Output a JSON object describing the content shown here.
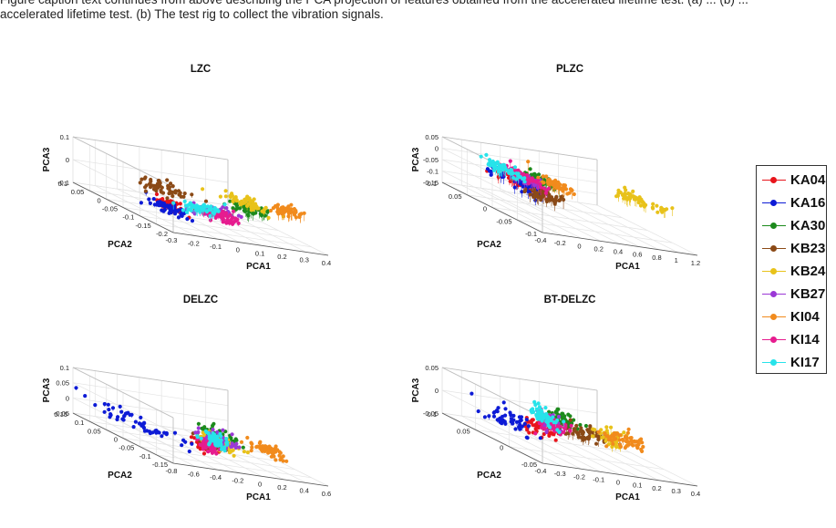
{
  "caption": {
    "line1": "Figure caption text continues from above describing the PCA projection of features obtained from the accelerated lifetime test. (a) ... (b) ...",
    "line2": "accelerated lifetime test. (b) The test rig to collect the vibration signals."
  },
  "legend": [
    {
      "label": "KA04",
      "color": "#e8141b"
    },
    {
      "label": "KA16",
      "color": "#0d1bd6"
    },
    {
      "label": "KA30",
      "color": "#1c8a1c"
    },
    {
      "label": "KB23",
      "color": "#8b4a17"
    },
    {
      "label": "KB24",
      "color": "#e8c21a"
    },
    {
      "label": "KB27",
      "color": "#9b38d6"
    },
    {
      "label": "KI04",
      "color": "#f18b1d"
    },
    {
      "label": "KI14",
      "color": "#e61c8f"
    },
    {
      "label": "KI17",
      "color": "#27e3ea"
    }
  ],
  "chart_data": [
    {
      "type": "scatter",
      "title": "LZC",
      "xlabel": "PCA1",
      "ylabel": "PCA2",
      "zlabel": "PCA3",
      "xticks": [
        "-0.3",
        "-0.2",
        "-0.1",
        "0",
        "0.1",
        "0.2",
        "0.3",
        "0.4"
      ],
      "yticks": [
        "0.1",
        "0.05",
        "0",
        "-0.05",
        "-0.1",
        "-0.15",
        "-0.2"
      ],
      "zticks": [
        "0.1",
        "0",
        "-0.1"
      ],
      "xlim": [
        -0.3,
        0.4
      ],
      "ylim": [
        -0.2,
        0.1
      ],
      "zlim": [
        -0.1,
        0.1
      ],
      "grid": true,
      "series": [
        {
          "name": "KA04",
          "x": -0.25,
          "y": 0.06,
          "z": 0.0,
          "sx": 0.025,
          "sy": 0.015
        },
        {
          "name": "KA16",
          "x": -0.25,
          "y": 0.05,
          "z": -0.02,
          "sx": 0.04,
          "sy": 0.025
        },
        {
          "name": "KA30",
          "x": 0.05,
          "y": 0.1,
          "z": 0.05,
          "sx": 0.04,
          "sy": 0.01
        },
        {
          "name": "KB23",
          "x": 0.0,
          "y": -0.12,
          "z": -0.03,
          "sx": 0.05,
          "sy": 0.03
        },
        {
          "name": "KB24",
          "x": 0.25,
          "y": -0.05,
          "z": 0.0,
          "sx": 0.035,
          "sy": 0.03
        },
        {
          "name": "KB27",
          "x": -0.12,
          "y": 0.1,
          "z": 0.02,
          "sx": 0.05,
          "sy": 0.01
        },
        {
          "name": "KI04",
          "x": 0.27,
          "y": 0.07,
          "z": 0.05,
          "sx": 0.035,
          "sy": 0.015
        },
        {
          "name": "KI14",
          "x": -0.05,
          "y": 0.08,
          "z": -0.01,
          "sx": 0.05,
          "sy": 0.015
        },
        {
          "name": "KI17",
          "x": -0.2,
          "y": 0.11,
          "z": 0.03,
          "sx": 0.05,
          "sy": 0.01
        }
      ]
    },
    {
      "type": "scatter",
      "title": "PLZC",
      "xlabel": "PCA1",
      "ylabel": "PCA2",
      "zlabel": "PCA3",
      "xticks": [
        "-0.4",
        "-0.2",
        "0",
        "0.2",
        "0.4",
        "0.6",
        "0.8",
        "1",
        "1.2"
      ],
      "yticks": [
        "0.1",
        "0.05",
        "0",
        "-0.05",
        "-0.1"
      ],
      "zticks": [
        "0.05",
        "0",
        "-0.05",
        "-0.1",
        "-0.15"
      ],
      "xlim": [
        -0.4,
        1.2
      ],
      "ylim": [
        -0.1,
        0.15
      ],
      "zlim": [
        -0.15,
        0.05
      ],
      "grid": true,
      "series": [
        {
          "name": "KA04",
          "x": -0.25,
          "y": 0.06,
          "z": 0.0,
          "sx": 0.04,
          "sy": 0.03
        },
        {
          "name": "KA16",
          "x": -0.27,
          "y": 0.07,
          "z": 0.0,
          "sx": 0.05,
          "sy": 0.035
        },
        {
          "name": "KA30",
          "x": 0.1,
          "y": 0.02,
          "z": 0.0,
          "sx": 0.04,
          "sy": 0.02
        },
        {
          "name": "KB23",
          "x": -0.3,
          "y": 0.13,
          "z": 0.0,
          "sx": 0.08,
          "sy": 0.015
        },
        {
          "name": "KB24",
          "x": 0.95,
          "y": 0.06,
          "z": 0.0,
          "sx": 0.08,
          "sy": 0.03
        },
        {
          "name": "KB27",
          "x": -0.05,
          "y": 0.02,
          "z": 0.0,
          "sx": 0.03,
          "sy": 0.02
        },
        {
          "name": "KI04",
          "x": 0.2,
          "y": 0.04,
          "z": 0.0,
          "sx": 0.03,
          "sy": 0.02
        },
        {
          "name": "KI14",
          "x": -0.05,
          "y": 0.01,
          "z": 0.0,
          "sx": 0.03,
          "sy": 0.03
        },
        {
          "name": "KI17",
          "x": -0.1,
          "y": -0.02,
          "z": 0.0,
          "sx": 0.03,
          "sy": 0.025
        }
      ]
    },
    {
      "type": "scatter",
      "title": "DELZC",
      "xlabel": "PCA1",
      "ylabel": "PCA2",
      "zlabel": "PCA3",
      "xticks": [
        "-0.8",
        "-0.6",
        "-0.4",
        "-0.2",
        "0",
        "0.2",
        "0.4",
        "0.6"
      ],
      "yticks": [
        "0.15",
        "0.1",
        "0.05",
        "0",
        "-0.05",
        "-0.1",
        "-0.15"
      ],
      "zticks": [
        "0.1",
        "0.05",
        "0",
        "-0.05"
      ],
      "xlim": [
        -0.8,
        0.6
      ],
      "ylim": [
        -0.15,
        0.15
      ],
      "zlim": [
        -0.05,
        0.1
      ],
      "grid": true,
      "series": [
        {
          "name": "KA04",
          "x": -0.3,
          "y": 0.08,
          "z": 0.0,
          "sx": 0.04,
          "sy": 0.015
        },
        {
          "name": "KA16",
          "x": -0.6,
          "y": -0.02,
          "z": 0.0,
          "sx": 0.08,
          "sy": 0.06
        },
        {
          "name": "KA30",
          "x": 0.1,
          "y": 0.0,
          "z": 0.0,
          "sx": 0.05,
          "sy": 0.03
        },
        {
          "name": "KB23",
          "x": -0.35,
          "y": 0.12,
          "z": 0.03,
          "sx": 0.04,
          "sy": 0.02
        },
        {
          "name": "KB24",
          "x": -0.15,
          "y": 0.08,
          "z": 0.01,
          "sx": 0.05,
          "sy": 0.02
        },
        {
          "name": "KB27",
          "x": 0.0,
          "y": 0.02,
          "z": 0.0,
          "sx": 0.04,
          "sy": 0.02
        },
        {
          "name": "KI04",
          "x": 0.35,
          "y": 0.05,
          "z": 0.0,
          "sx": 0.04,
          "sy": 0.025
        },
        {
          "name": "KI14",
          "x": -0.3,
          "y": 0.09,
          "z": 0.0,
          "sx": 0.03,
          "sy": 0.01
        },
        {
          "name": "KI17",
          "x": -0.1,
          "y": 0.04,
          "z": 0.0,
          "sx": 0.05,
          "sy": 0.015
        }
      ]
    },
    {
      "type": "scatter",
      "title": "BT-DELZC",
      "xlabel": "PCA1",
      "ylabel": "PCA2",
      "zlabel": "PCA3",
      "xticks": [
        "-0.4",
        "-0.3",
        "-0.2",
        "-0.1",
        "0",
        "0.1",
        "0.2",
        "0.3",
        "0.4"
      ],
      "yticks": [
        "0.1",
        "0.05",
        "0",
        "-0.05"
      ],
      "zticks": [
        "0.05",
        "0",
        "-0.05"
      ],
      "xlim": [
        -0.4,
        0.4
      ],
      "ylim": [
        -0.05,
        0.1
      ],
      "zlim": [
        -0.05,
        0.05
      ],
      "grid": true,
      "series": [
        {
          "name": "KA04",
          "x": -0.2,
          "y": 0.04,
          "z": 0.0,
          "sx": 0.04,
          "sy": 0.01
        },
        {
          "name": "KA16",
          "x": -0.35,
          "y": 0.03,
          "z": 0.0,
          "sx": 0.05,
          "sy": 0.015
        },
        {
          "name": "KA30",
          "x": 0.05,
          "y": 0.0,
          "z": 0.0,
          "sx": 0.04,
          "sy": 0.01
        },
        {
          "name": "KB23",
          "x": -0.1,
          "y": 0.08,
          "z": 0.02,
          "sx": 0.06,
          "sy": 0.01
        },
        {
          "name": "KB24",
          "x": -0.02,
          "y": 0.09,
          "z": 0.02,
          "sx": 0.03,
          "sy": 0.008
        },
        {
          "name": "KB27",
          "x": -0.08,
          "y": 0.02,
          "z": 0.0,
          "sx": 0.02,
          "sy": 0.008
        },
        {
          "name": "KI04",
          "x": 0.2,
          "y": 0.05,
          "z": 0.0,
          "sx": 0.04,
          "sy": 0.01
        },
        {
          "name": "KI14",
          "x": -0.1,
          "y": 0.03,
          "z": 0.0,
          "sx": 0.02,
          "sy": 0.008
        },
        {
          "name": "KI17",
          "x": -0.05,
          "y": 0.0,
          "z": 0.0,
          "sx": 0.02,
          "sy": 0.012
        }
      ]
    }
  ]
}
